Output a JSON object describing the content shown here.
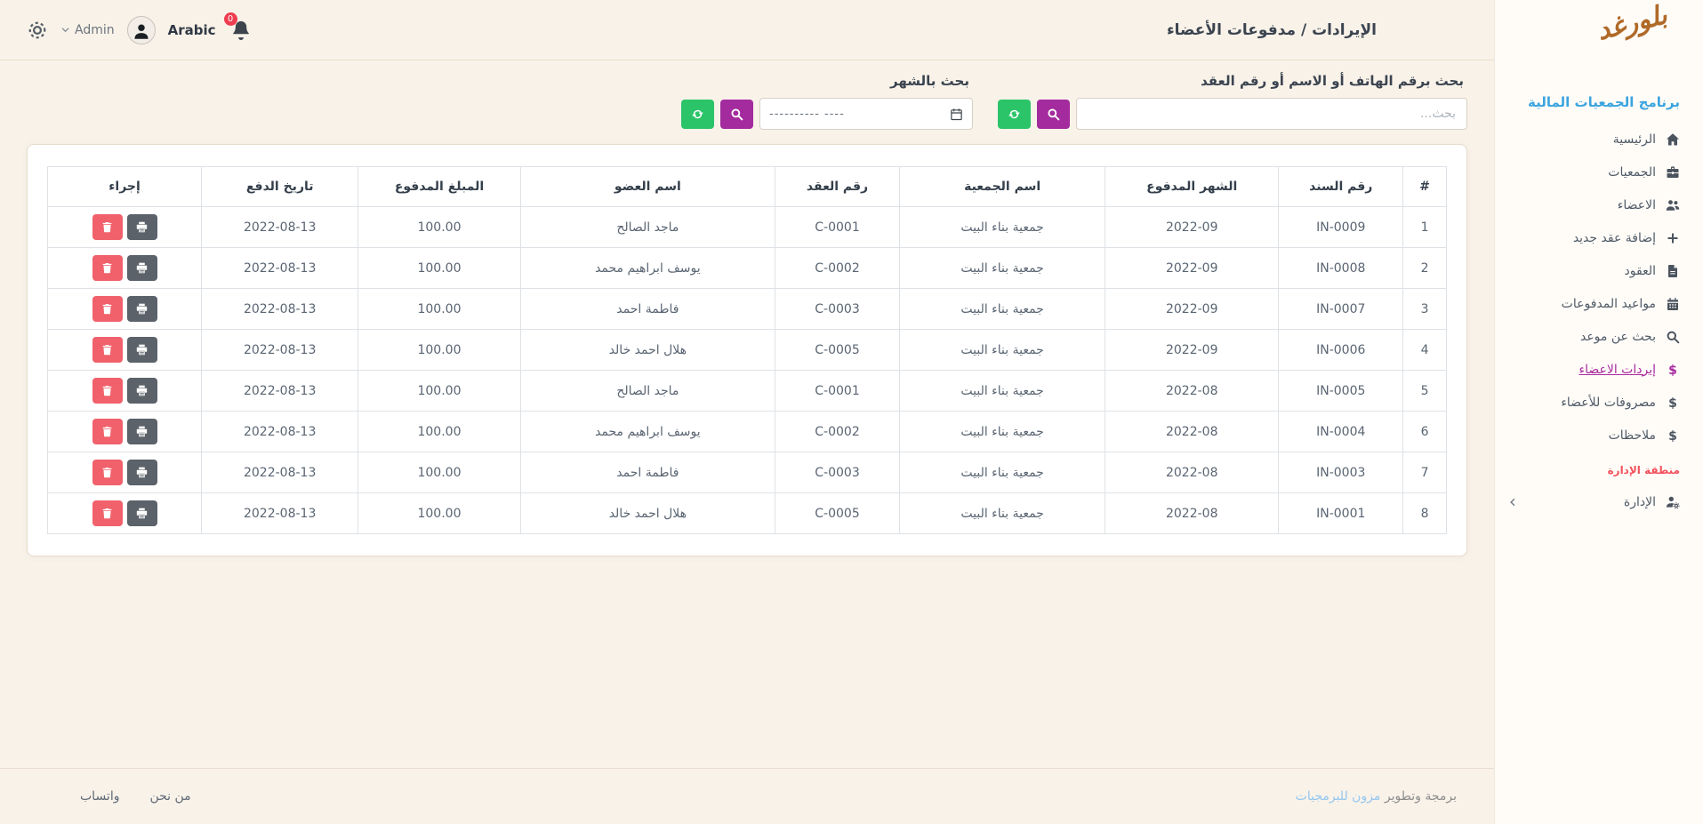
{
  "topbar": {
    "title": "الإيرادات / مدفوعات الأعضاء",
    "admin_label": "Admin",
    "language_label": "Arabic",
    "notification_count": "0"
  },
  "sidebar": {
    "logo_text": "بلورغد",
    "brand": "برنامج الجمعيات المالية",
    "items": [
      {
        "label": "الرئيسية",
        "icon": "home-icon",
        "active": false
      },
      {
        "label": "الجمعيات",
        "icon": "briefcase-icon",
        "active": false
      },
      {
        "label": "الاعضاء",
        "icon": "users-icon",
        "active": false
      },
      {
        "label": "إضافة عقد جديد",
        "icon": "plus-icon",
        "active": false
      },
      {
        "label": "العقود",
        "icon": "contract-file-icon",
        "active": false
      },
      {
        "label": "مواعيد المدفوعات",
        "icon": "calendar-icon",
        "active": false
      },
      {
        "label": "بحث عن موعد",
        "icon": "search-icon",
        "active": false
      },
      {
        "label": "إيردات الاعضاء",
        "icon": "dollar-icon",
        "active": true
      },
      {
        "label": "مصروفات للأعضاء",
        "icon": "dollar-icon",
        "active": false
      },
      {
        "label": "ملاحظات",
        "icon": "dollar-icon",
        "active": false
      }
    ],
    "section_label": "منطقة الإدارة",
    "admin_item": {
      "label": "الإدارة",
      "icon": "user-gear-icon"
    }
  },
  "search": {
    "by_text": {
      "label": "بحث برقم الهاتف أو الاسم أو رقم العقد",
      "placeholder": "بحث..."
    },
    "by_month": {
      "label": "بحث بالشهر",
      "placeholder": "---------- ----"
    }
  },
  "table": {
    "headers": [
      "#",
      "رقم السند",
      "الشهر المدفوع",
      "اسم الجمعية",
      "رقم العقد",
      "اسم العضو",
      "المبلغ المدفوع",
      "تاريخ الدفع",
      "إجراء"
    ],
    "rows": [
      {
        "num": "1",
        "voucher": "IN-0009",
        "month": "2022-09",
        "association": "جمعية بناء البيت",
        "contract": "C-0001",
        "member": "ماجد الصالح",
        "amount": "100.00",
        "date": "2022-08-13"
      },
      {
        "num": "2",
        "voucher": "IN-0008",
        "month": "2022-09",
        "association": "جمعية بناء البيت",
        "contract": "C-0002",
        "member": "يوسف ابراهيم محمد",
        "amount": "100.00",
        "date": "2022-08-13"
      },
      {
        "num": "3",
        "voucher": "IN-0007",
        "month": "2022-09",
        "association": "جمعية بناء البيت",
        "contract": "C-0003",
        "member": "فاطمة احمد",
        "amount": "100.00",
        "date": "2022-08-13"
      },
      {
        "num": "4",
        "voucher": "IN-0006",
        "month": "2022-09",
        "association": "جمعية بناء البيت",
        "contract": "C-0005",
        "member": "هلال احمد خالد",
        "amount": "100.00",
        "date": "2022-08-13"
      },
      {
        "num": "5",
        "voucher": "IN-0005",
        "month": "2022-08",
        "association": "جمعية بناء البيت",
        "contract": "C-0001",
        "member": "ماجد الصالح",
        "amount": "100.00",
        "date": "2022-08-13"
      },
      {
        "num": "6",
        "voucher": "IN-0004",
        "month": "2022-08",
        "association": "جمعية بناء البيت",
        "contract": "C-0002",
        "member": "يوسف ابراهيم محمد",
        "amount": "100.00",
        "date": "2022-08-13"
      },
      {
        "num": "7",
        "voucher": "IN-0003",
        "month": "2022-08",
        "association": "جمعية بناء البيت",
        "contract": "C-0003",
        "member": "فاطمة احمد",
        "amount": "100.00",
        "date": "2022-08-13"
      },
      {
        "num": "8",
        "voucher": "IN-0001",
        "month": "2022-08",
        "association": "جمعية بناء البيت",
        "contract": "C-0005",
        "member": "هلال احمد خالد",
        "amount": "100.00",
        "date": "2022-08-13"
      }
    ]
  },
  "footer": {
    "credit_prefix": "برمجة وتطوير",
    "credit_link": "مزون للبرمجيات",
    "links": [
      {
        "label": "من نحن"
      },
      {
        "label": "واتساب"
      }
    ]
  },
  "colors": {
    "bg_main": "#f9f2e9",
    "bg_sidebar": "#fffcf8",
    "border_warm": "#eadfd0",
    "card_border": "#e7dccd",
    "table_border": "#dee2e6",
    "text_dark": "#3b4450",
    "text_mid": "#5a6572",
    "icon_gray": "#4b545e",
    "green": "#2bc469",
    "purple": "#a32b9e",
    "active_purple": "#a82aa0",
    "delete_red": "#f1616b",
    "print_gray": "#5b6269",
    "brand_blue": "#3ba4de",
    "link_blue": "#93c7ef",
    "section_red": "#f4515c",
    "badge_red": "#ee3d50",
    "logo_brown": "#b06a28"
  }
}
